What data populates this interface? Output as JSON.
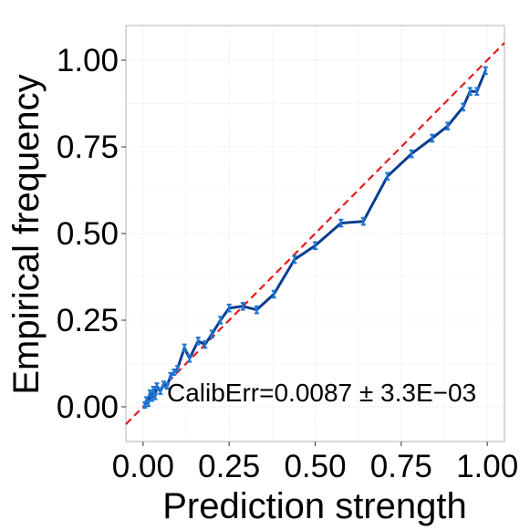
{
  "chart_data": {
    "type": "line",
    "title": "",
    "xlabel": "Prediction strength",
    "ylabel": "Empirical frequency",
    "xlim": [
      -0.05,
      1.05
    ],
    "ylim": [
      -0.1,
      1.1
    ],
    "xticks": [
      0.0,
      0.25,
      0.5,
      0.75,
      1.0
    ],
    "xtick_labels": [
      "0.00",
      "0.25",
      "0.50",
      "0.75",
      "1.00"
    ],
    "yticks": [
      0.0,
      0.25,
      0.5,
      0.75,
      1.0
    ],
    "ytick_labels": [
      "0.00",
      "0.25",
      "0.50",
      "0.75",
      "1.00"
    ],
    "grid": true,
    "annotation": "CalibErr=0.0087 ± 3.3E−03",
    "reference_line": {
      "style": "dashed",
      "color": "#e41a1c",
      "x": [
        -0.05,
        1.05
      ],
      "y": [
        -0.05,
        1.05
      ]
    },
    "series": [
      {
        "color": "#0b3d91",
        "errorbar_color": "#1f77d4",
        "x": [
          0.005,
          0.01,
          0.015,
          0.02,
          0.025,
          0.03,
          0.035,
          0.04,
          0.05,
          0.06,
          0.07,
          0.08,
          0.09,
          0.1,
          0.12,
          0.135,
          0.16,
          0.18,
          0.2,
          0.225,
          0.25,
          0.29,
          0.33,
          0.38,
          0.44,
          0.5,
          0.575,
          0.64,
          0.71,
          0.78,
          0.84,
          0.885,
          0.93,
          0.95,
          0.97,
          0.995
        ],
        "y": [
          0.005,
          0.02,
          0.01,
          0.04,
          0.025,
          0.05,
          0.03,
          0.06,
          0.045,
          0.065,
          0.06,
          0.09,
          0.1,
          0.11,
          0.17,
          0.14,
          0.19,
          0.18,
          0.21,
          0.25,
          0.285,
          0.29,
          0.28,
          0.325,
          0.425,
          0.465,
          0.53,
          0.535,
          0.665,
          0.73,
          0.775,
          0.81,
          0.865,
          0.91,
          0.91,
          0.97
        ],
        "err": [
          0.008,
          0.008,
          0.008,
          0.008,
          0.008,
          0.008,
          0.008,
          0.008,
          0.008,
          0.008,
          0.008,
          0.008,
          0.008,
          0.008,
          0.01,
          0.01,
          0.01,
          0.01,
          0.01,
          0.01,
          0.01,
          0.01,
          0.01,
          0.01,
          0.01,
          0.01,
          0.01,
          0.01,
          0.01,
          0.01,
          0.01,
          0.01,
          0.01,
          0.01,
          0.01,
          0.01
        ]
      }
    ]
  }
}
